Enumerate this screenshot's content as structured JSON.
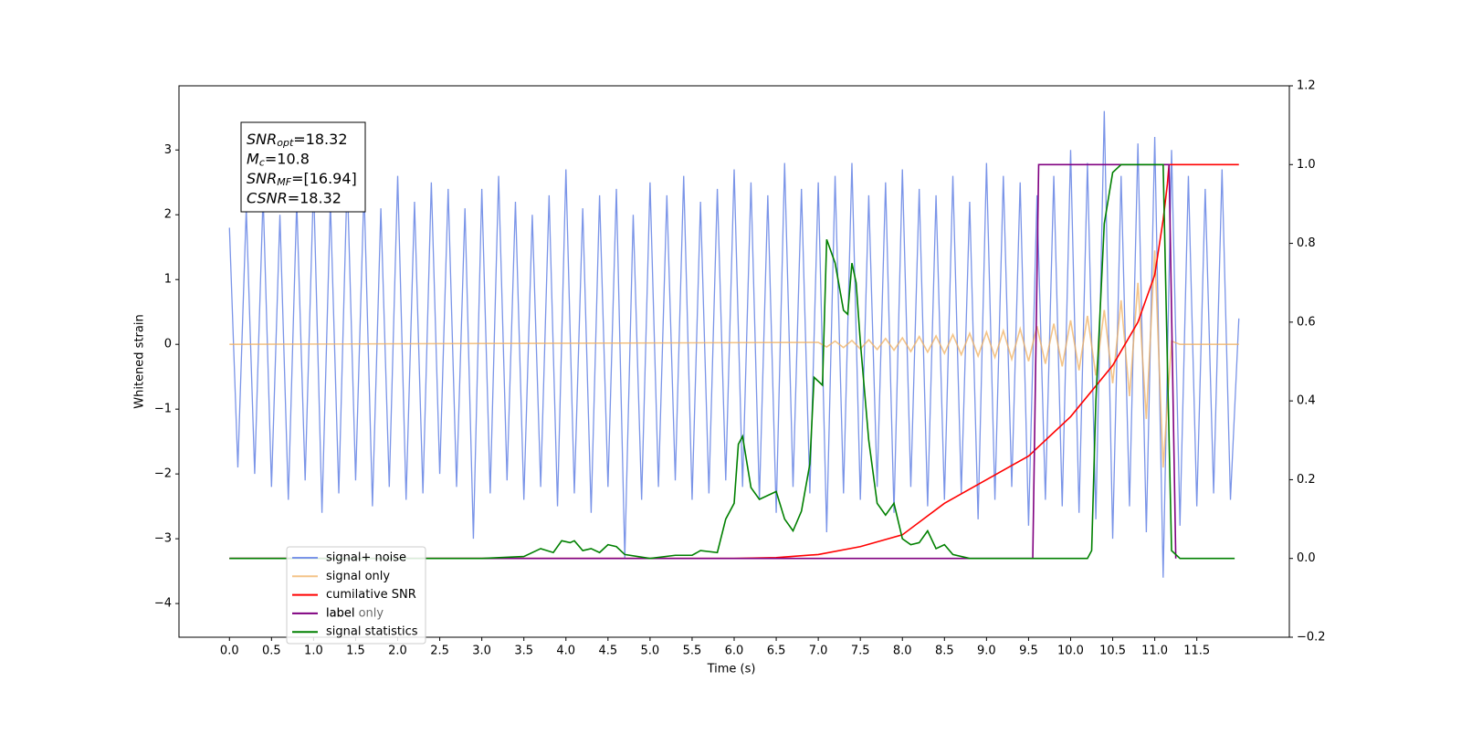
{
  "chart_data": {
    "type": "line",
    "xlabel": "Time (s)",
    "ylabel": "Whitened strain",
    "xlim": [
      -0.6,
      12.6
    ],
    "ylim": [
      -4.52,
      3.99
    ],
    "y2lim": [
      -0.2,
      1.2
    ],
    "xticks": [
      {
        "value": 0,
        "label": "0.0"
      },
      0.5,
      {
        "value": 1,
        "label": "1.0"
      },
      1.5,
      {
        "value": 2,
        "label": "2.0"
      },
      2.5,
      {
        "value": 3,
        "label": "3.0"
      },
      3.5,
      {
        "value": 4,
        "label": "4.0"
      },
      4.5,
      {
        "value": 5,
        "label": "5.0"
      },
      5.5,
      {
        "value": 6,
        "label": "6.0"
      },
      6.5,
      {
        "value": 7,
        "label": "7.0"
      },
      7.5,
      {
        "value": 8,
        "label": "8.0"
      },
      8.5,
      {
        "value": 9,
        "label": "9.0"
      },
      9.5,
      {
        "value": 10,
        "label": "10.0"
      },
      10.5,
      {
        "value": 11,
        "label": "11.0"
      },
      11.5
    ],
    "yticks": [
      {
        "value": -4,
        "label": "−4"
      },
      {
        "value": -3,
        "label": "−3"
      },
      {
        "value": -2,
        "label": "−2"
      },
      {
        "value": -1,
        "label": "−1"
      },
      0,
      1,
      2,
      3
    ],
    "y2ticks": [
      {
        "value": -0.2,
        "label": "−0.2"
      },
      {
        "value": 0,
        "label": "0.0"
      },
      0.2,
      0.4,
      0.6,
      0.8,
      {
        "value": 1,
        "label": "1.0"
      },
      1.2
    ],
    "annotation": [
      {
        "main": "SNR",
        "sub": "opt",
        "rest": "=18.32"
      },
      {
        "main": "M",
        "sub": "c",
        "rest": "=10.8"
      },
      {
        "main": "SNR",
        "sub": "MF",
        "rest": "=[16.94]"
      },
      {
        "main": "CSNR",
        "rest": "=18.32"
      }
    ],
    "hidden_legend_text": "label only",
    "series": [
      {
        "name": "signal+ noise",
        "color": "#7a94e8",
        "x": [
          0,
          0.1,
          0.2,
          0.3,
          0.4,
          0.5,
          0.6,
          0.7,
          0.8,
          0.9,
          1,
          1.1,
          1.2,
          1.3,
          1.4,
          1.5,
          1.6,
          1.7,
          1.8,
          1.9,
          2,
          2.1,
          2.2,
          2.3,
          2.4,
          2.5,
          2.6,
          2.7,
          2.8,
          2.9,
          3,
          3.1,
          3.2,
          3.3,
          3.4,
          3.5,
          3.6,
          3.7,
          3.8,
          3.9,
          4,
          4.1,
          4.2,
          4.3,
          4.4,
          4.5,
          4.6,
          4.7,
          4.8,
          4.9,
          5,
          5.1,
          5.2,
          5.3,
          5.4,
          5.5,
          5.6,
          5.7,
          5.8,
          5.9,
          6,
          6.1,
          6.2,
          6.3,
          6.4,
          6.5,
          6.6,
          6.7,
          6.8,
          6.9,
          7,
          7.1,
          7.2,
          7.3,
          7.4,
          7.5,
          7.6,
          7.7,
          7.8,
          7.9,
          8,
          8.1,
          8.2,
          8.3,
          8.4,
          8.5,
          8.6,
          8.7,
          8.8,
          8.9,
          9,
          9.1,
          9.2,
          9.3,
          9.4,
          9.5,
          9.6,
          9.7,
          9.8,
          9.9,
          10,
          10.1,
          10.2,
          10.3,
          10.4,
          10.5,
          10.6,
          10.7,
          10.8,
          10.9,
          11,
          11.1,
          11.2,
          11.3,
          11.4,
          11.5,
          11.6,
          11.7,
          11.8,
          11.9,
          12
        ],
        "values": [
          1.8,
          -1.9,
          2.1,
          -2.0,
          2.3,
          -2.2,
          2.0,
          -2.4,
          2.2,
          -2.1,
          2.5,
          -2.6,
          2.2,
          -2.3,
          2.6,
          -2.1,
          2.4,
          -2.5,
          2.1,
          -2.2,
          2.6,
          -2.4,
          2.2,
          -2.3,
          2.5,
          -2.0,
          2.4,
          -2.2,
          2.1,
          -3.0,
          2.4,
          -2.3,
          2.6,
          -2.1,
          2.2,
          -2.4,
          2.0,
          -2.2,
          2.3,
          -2.5,
          2.7,
          -2.3,
          2.1,
          -2.6,
          2.3,
          -2.2,
          2.4,
          -3.3,
          2.0,
          -2.4,
          2.5,
          -2.2,
          2.3,
          -2.1,
          2.6,
          -2.4,
          2.2,
          -2.3,
          2.4,
          -2.1,
          2.7,
          -2.2,
          2.5,
          -2.4,
          2.3,
          -2.6,
          2.8,
          -2.2,
          2.4,
          -2.3,
          2.5,
          -2.9,
          2.6,
          -2.3,
          2.8,
          -2.4,
          2.3,
          -2.2,
          2.5,
          -2.6,
          2.7,
          -2.2,
          2.4,
          -2.5,
          2.3,
          -2.4,
          2.6,
          -2.3,
          2.2,
          -2.7,
          2.8,
          -2.4,
          2.6,
          -2.2,
          2.5,
          -2.8,
          2.3,
          -2.4,
          2.6,
          -2.5,
          3.0,
          -2.6,
          2.8,
          -2.7,
          3.6,
          -3.0,
          2.6,
          -2.5,
          3.1,
          -2.9,
          3.2,
          -3.6,
          3.0,
          -2.8,
          2.6,
          -2.5,
          2.4,
          -2.3,
          2.7,
          -2.4,
          0.4
        ]
      },
      {
        "name": "signal only",
        "color": "#f0b060",
        "x": [
          0,
          7,
          7.1,
          7.2,
          7.3,
          7.4,
          7.5,
          7.6,
          7.7,
          7.8,
          7.9,
          8,
          8.1,
          8.2,
          8.3,
          8.4,
          8.5,
          8.6,
          8.7,
          8.8,
          8.9,
          9,
          9.1,
          9.2,
          9.3,
          9.4,
          9.5,
          9.6,
          9.7,
          9.8,
          9.9,
          10,
          10.1,
          10.2,
          10.3,
          10.4,
          10.5,
          10.6,
          10.7,
          10.8,
          10.9,
          11,
          11.1,
          11.2,
          11.3,
          12
        ],
        "values": [
          0,
          0.03,
          -0.04,
          0.05,
          -0.05,
          0.06,
          -0.07,
          0.07,
          -0.08,
          0.09,
          -0.09,
          0.1,
          -0.11,
          0.12,
          -0.12,
          0.13,
          -0.14,
          0.15,
          -0.16,
          0.17,
          -0.18,
          0.19,
          -0.2,
          0.21,
          -0.23,
          0.24,
          -0.26,
          0.28,
          -0.3,
          0.32,
          -0.34,
          0.37,
          -0.4,
          0.44,
          -0.48,
          0.53,
          -0.6,
          0.68,
          -0.8,
          0.95,
          -1.15,
          1.45,
          -1.9,
          0.05,
          0,
          0
        ]
      },
      {
        "name": "cumilative SNR",
        "color": "#ff0000",
        "axis": "y2",
        "x": [
          0,
          6,
          6.5,
          7,
          7.5,
          8,
          8.5,
          9,
          9.5,
          10,
          10.5,
          10.8,
          11,
          11.1,
          11.15,
          11.17,
          12
        ],
        "values": [
          0,
          0,
          0.002,
          0.01,
          0.03,
          0.06,
          0.14,
          0.2,
          0.26,
          0.36,
          0.49,
          0.6,
          0.72,
          0.86,
          0.95,
          1,
          1
        ]
      },
      {
        "name": "label",
        "color": "#800080",
        "axis": "y2",
        "x": [
          0,
          9.55,
          9.62,
          11.17,
          11.25
        ],
        "values": [
          0,
          0,
          1,
          1,
          0
        ]
      },
      {
        "name": "signal statistics",
        "color": "#008000",
        "axis": "y2",
        "x": [
          0,
          3,
          3.5,
          3.7,
          3.85,
          3.95,
          4.05,
          4.1,
          4.2,
          4.3,
          4.4,
          4.5,
          4.6,
          4.7,
          5,
          5.3,
          5.5,
          5.6,
          5.8,
          5.9,
          6,
          6.05,
          6.1,
          6.2,
          6.3,
          6.5,
          6.6,
          6.7,
          6.8,
          6.9,
          6.95,
          7.05,
          7.1,
          7.2,
          7.3,
          7.35,
          7.4,
          7.45,
          7.5,
          7.6,
          7.7,
          7.8,
          7.9,
          8,
          8.1,
          8.2,
          8.3,
          8.4,
          8.5,
          8.6,
          8.8,
          10.2,
          10.25,
          10.3,
          10.4,
          10.5,
          10.6,
          11.1,
          11.15,
          11.2,
          11.3,
          11.95
        ],
        "values": [
          0,
          0,
          0.005,
          0.025,
          0.015,
          0.045,
          0.04,
          0.045,
          0.02,
          0.025,
          0.015,
          0.035,
          0.03,
          0.01,
          0,
          0.008,
          0.008,
          0.02,
          0.015,
          0.1,
          0.14,
          0.29,
          0.31,
          0.18,
          0.15,
          0.17,
          0.1,
          0.07,
          0.12,
          0.24,
          0.46,
          0.44,
          0.81,
          0.75,
          0.63,
          0.62,
          0.75,
          0.7,
          0.55,
          0.3,
          0.14,
          0.11,
          0.14,
          0.05,
          0.035,
          0.04,
          0.07,
          0.025,
          0.035,
          0.01,
          0,
          0,
          0.02,
          0.4,
          0.85,
          0.98,
          1,
          1,
          0.5,
          0.02,
          0,
          0
        ]
      }
    ]
  }
}
